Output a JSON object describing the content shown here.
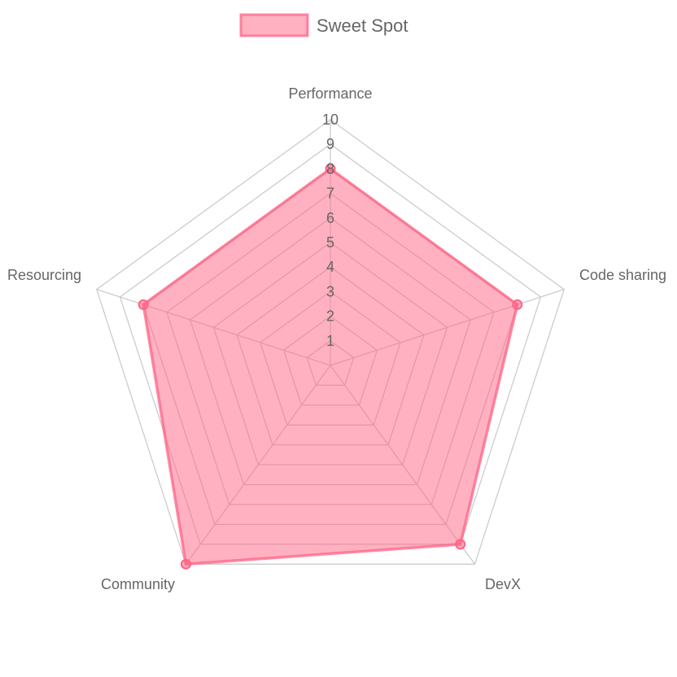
{
  "chart_data": {
    "type": "radar",
    "legend_position": "top",
    "labels": [
      "Performance",
      "Code sharing",
      "DevX",
      "Community",
      "Resourcing"
    ],
    "series": [
      {
        "name": "Sweet Spot",
        "values": [
          8,
          8,
          9,
          10,
          8
        ],
        "fill_color": "#ff6384",
        "fill_opacity": 0.5,
        "border_color": "#ff6384"
      }
    ],
    "r_range": [
      0,
      10
    ],
    "ticks": [
      "1",
      "2",
      "3",
      "4",
      "5",
      "6",
      "7",
      "8",
      "9",
      "10"
    ],
    "grid": true,
    "grid_color": "#cccccc"
  }
}
